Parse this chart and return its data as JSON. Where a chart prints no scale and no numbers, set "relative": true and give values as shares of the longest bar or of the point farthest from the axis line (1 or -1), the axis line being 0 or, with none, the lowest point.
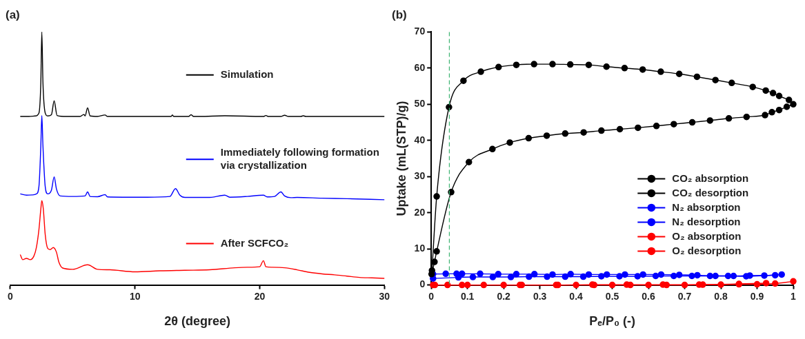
{
  "chart_data": [
    {
      "type": "line",
      "title": "(a)",
      "xlabel": "2θ (degree)",
      "relative": true,
      "xlim": [
        0,
        30
      ],
      "xticks": [
        0,
        10,
        20,
        30
      ],
      "legend": "right",
      "grid": false,
      "series": [
        {
          "name": "Simulation",
          "color": "#000000",
          "x": [
            0.8,
            1.5,
            2.0,
            2.3,
            2.45,
            2.53,
            2.62,
            2.8,
            3.0,
            3.3,
            3.52,
            3.75,
            4.5,
            5.6,
            5.9,
            6.0,
            6.2,
            6.4,
            7.0,
            7.6,
            7.8,
            9,
            12.9,
            13.0,
            13.1,
            14.3,
            14.5,
            14.7,
            15.2,
            17.2,
            20.3,
            20.5,
            20.7,
            21.7,
            22.0,
            22.3,
            23.3,
            23.5,
            23.7,
            26,
            30
          ],
          "values": [
            0.666,
            0.666,
            0.668,
            0.68,
            0.8,
            1,
            0.8,
            0.68,
            0.668,
            0.673,
            0.728,
            0.67,
            0.666,
            0.666,
            0.674,
            0.668,
            0.7,
            0.668,
            0.666,
            0.672,
            0.666,
            0.666,
            0.666,
            0.672,
            0.666,
            0.666,
            0.673,
            0.666,
            0.666,
            0.669,
            0.666,
            0.67,
            0.666,
            0.666,
            0.671,
            0.666,
            0.666,
            0.669,
            0.666,
            0.666,
            0.666
          ]
        },
        {
          "name": "Immediately following formation via crystallization",
          "color": "#0000ff",
          "x": [
            0.8,
            1.3,
            1.8,
            2.1,
            2.3,
            2.45,
            2.53,
            2.62,
            2.8,
            3.0,
            3.3,
            3.52,
            3.7,
            4.0,
            5,
            6.0,
            6.2,
            6.4,
            7.0,
            7.6,
            7.8,
            9,
            11,
            12.8,
            13.25,
            13.6,
            14,
            16,
            17.2,
            17.6,
            19,
            20.3,
            20.6,
            21.2,
            21.7,
            22.0,
            22.5,
            23,
            25,
            27,
            30
          ],
          "values": [
            0.36,
            0.355,
            0.356,
            0.36,
            0.39,
            0.55,
            0.67,
            0.55,
            0.39,
            0.36,
            0.375,
            0.427,
            0.38,
            0.352,
            0.35,
            0.352,
            0.368,
            0.35,
            0.349,
            0.357,
            0.348,
            0.347,
            0.347,
            0.35,
            0.381,
            0.355,
            0.346,
            0.346,
            0.355,
            0.347,
            0.35,
            0.355,
            0.348,
            0.35,
            0.368,
            0.352,
            0.345,
            0.346,
            0.343,
            0.341,
            0.337
          ]
        },
        {
          "name": "After SCFCO₂",
          "color": "#ff0000",
          "x": [
            0.8,
            1.0,
            1.3,
            1.6,
            1.9,
            2.1,
            2.3,
            2.45,
            2.53,
            2.65,
            2.8,
            3.0,
            3.2,
            3.45,
            3.7,
            3.9,
            4.2,
            5,
            6.2,
            7,
            8,
            10,
            12,
            14,
            16,
            18,
            19,
            20,
            20.3,
            20.5,
            21,
            22,
            23,
            24,
            25,
            26,
            27,
            28,
            29,
            30
          ],
          "values": [
            0.12,
            0.1,
            0.105,
            0.1,
            0.115,
            0.15,
            0.22,
            0.3,
            0.333,
            0.3,
            0.2,
            0.145,
            0.14,
            0.148,
            0.13,
            0.09,
            0.067,
            0.062,
            0.08,
            0.062,
            0.06,
            0.052,
            0.056,
            0.058,
            0.06,
            0.068,
            0.07,
            0.072,
            0.096,
            0.072,
            0.07,
            0.068,
            0.06,
            0.05,
            0.044,
            0.04,
            0.035,
            0.03,
            0.028,
            0.026
          ]
        }
      ]
    },
    {
      "type": "line",
      "title": "(b)",
      "xlabel": "Pₑ/P₀ (-)",
      "ylabel": "Uptake (mL(STP)/g)",
      "xlim": [
        0,
        1
      ],
      "xticks": [
        0,
        0.1,
        0.2,
        0.3,
        0.4,
        0.5,
        0.6,
        0.7,
        0.8,
        0.9,
        1
      ],
      "ylim": [
        0,
        70
      ],
      "yticks": [
        0,
        10,
        20,
        30,
        40,
        50,
        60,
        70
      ],
      "legend": "bottom right",
      "grid": false,
      "marker": "circle",
      "ref_lines": [
        {
          "axis": "x",
          "value": 0.05,
          "color": "#3cb371",
          "line_style": "dashed"
        }
      ],
      "series": [
        {
          "name": "CO₂ absorption",
          "color": "#000000",
          "x": [
            0.001,
            0.009,
            0.015,
            0.055,
            0.104,
            0.169,
            0.217,
            0.269,
            0.319,
            0.37,
            0.421,
            0.47,
            0.521,
            0.571,
            0.622,
            0.67,
            0.721,
            0.77,
            0.822,
            0.871,
            0.922,
            0.941,
            0.961,
            0.982,
            1.0
          ],
          "values": [
            3,
            6.4,
            9.3,
            25.7,
            34.0,
            37.6,
            39.4,
            40.6,
            41.3,
            41.9,
            42.2,
            42.7,
            43.1,
            43.5,
            44.0,
            44.5,
            45.0,
            45.5,
            46.1,
            46.5,
            47.0,
            47.8,
            48.4,
            49.3,
            50.0
          ]
        },
        {
          "name": "CO₂ desorption",
          "color": "#000000",
          "x": [
            0.988,
            0.961,
            0.944,
            0.924,
            0.888,
            0.83,
            0.785,
            0.734,
            0.685,
            0.634,
            0.584,
            0.534,
            0.484,
            0.435,
            0.384,
            0.335,
            0.284,
            0.235,
            0.186,
            0.137,
            0.089,
            0.049,
            0.015,
            0.002
          ],
          "values": [
            51.2,
            52.3,
            53.1,
            53.8,
            54.8,
            55.9,
            56.7,
            57.6,
            58.4,
            59.0,
            59.6,
            60.0,
            60.4,
            60.9,
            61.0,
            61.1,
            61.1,
            60.9,
            60.3,
            59.0,
            56.5,
            49.2,
            24.5,
            4
          ]
        },
        {
          "name": "N₂ absorption",
          "color": "#0000ff",
          "x": [
            0.005,
            0.075,
            0.115,
            0.17,
            0.22,
            0.27,
            0.32,
            0.37,
            0.42,
            0.47,
            0.52,
            0.57,
            0.62,
            0.67,
            0.72,
            0.77,
            0.82,
            0.87,
            0.92,
            0.968
          ],
          "values": [
            1.8,
            2.1,
            2.2,
            2.2,
            2.2,
            2.3,
            2.3,
            2.3,
            2.3,
            2.4,
            2.4,
            2.4,
            2.5,
            2.5,
            2.5,
            2.5,
            2.5,
            2.4,
            2.6,
            2.9
          ]
        },
        {
          "name": "N₂ desorption",
          "color": "#0000ff",
          "x": [
            0.95,
            0.88,
            0.835,
            0.785,
            0.735,
            0.685,
            0.635,
            0.585,
            0.535,
            0.485,
            0.435,
            0.385,
            0.335,
            0.285,
            0.235,
            0.185,
            0.135,
            0.085,
            0.07,
            0.04,
            0.005
          ],
          "values": [
            2.7,
            2.6,
            2.5,
            2.5,
            2.7,
            2.8,
            2.9,
            2.9,
            2.9,
            2.9,
            2.9,
            3.0,
            2.9,
            3.0,
            3.0,
            3.0,
            3.1,
            3.1,
            3.1,
            3.1,
            3.0
          ]
        },
        {
          "name": "O₂ absorption",
          "color": "#ff0000",
          "x": [
            0.005,
            0.1,
            0.2,
            0.25,
            0.35,
            0.4,
            0.45,
            0.5,
            0.55,
            0.6,
            0.65,
            0.7,
            0.75,
            0.8,
            0.85,
            0.9,
            0.95,
            1.0
          ],
          "values": [
            0,
            0,
            0,
            0,
            0,
            0,
            0,
            0,
            0,
            0,
            0,
            0,
            0.1,
            0.1,
            0.2,
            0.2,
            0.4,
            1.0
          ]
        },
        {
          "name": "O₂ desorption",
          "color": "#ff0000",
          "x": [
            0.925,
            0.85,
            0.74,
            0.64,
            0.54,
            0.445,
            0.345,
            0.245,
            0.145,
            0.085,
            0.045,
            0.01
          ],
          "values": [
            0.5,
            0.3,
            0.1,
            0.1,
            0.1,
            0.1,
            0,
            0,
            0,
            0,
            0,
            0
          ]
        }
      ]
    }
  ]
}
